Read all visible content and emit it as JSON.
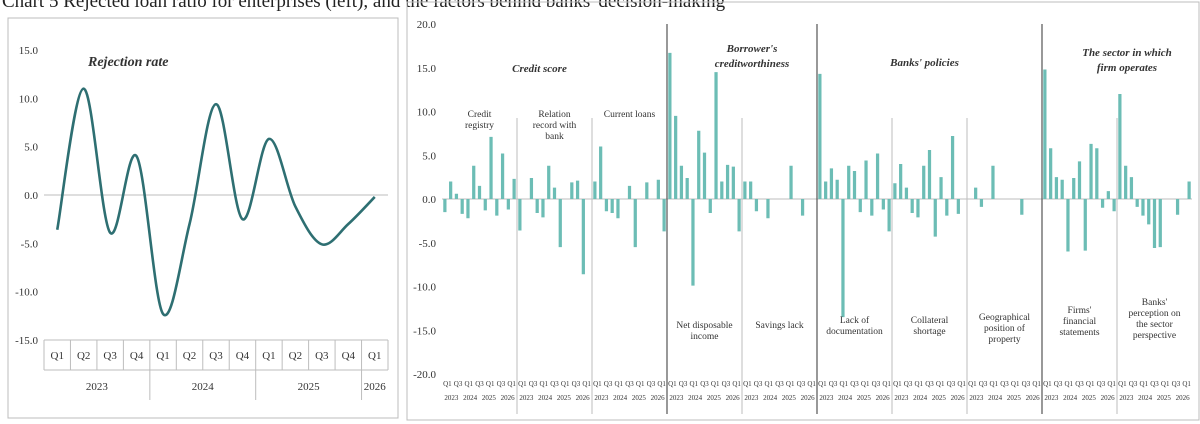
{
  "figure_title": "Chart 5 Rejected loan ratio for enterprises (left), and the factors behind banks' decision-making",
  "colors": {
    "line": "#2e6f72",
    "bar": "#6cbdb5",
    "grid": "#bdbdbd"
  },
  "chart_data": [
    {
      "type": "line",
      "title": "Rejection rate",
      "x": [
        "Q1",
        "Q2",
        "Q3",
        "Q4",
        "Q1",
        "Q2",
        "Q3",
        "Q4",
        "Q1",
        "Q2",
        "Q3",
        "Q4",
        "Q1"
      ],
      "year_groups": [
        {
          "year": "2023",
          "span": 4
        },
        {
          "year": "2024",
          "span": 4
        },
        {
          "year": "2025",
          "span": 4
        },
        {
          "year": "2026",
          "span": 1
        }
      ],
      "values": [
        -3.6,
        11.0,
        -3.9,
        4.0,
        -12.3,
        -3.0,
        9.4,
        -2.5,
        5.8,
        -1.2,
        -5.1,
        -3.0,
        -0.2
      ],
      "ylim": [
        -15,
        15
      ],
      "yticks": [
        "15.0",
        "10.0",
        "5.0",
        "0.0",
        "-5.0",
        "-10.0",
        "-15.0"
      ],
      "grid": false
    },
    {
      "type": "bar",
      "ylim": [
        -20,
        20
      ],
      "yticks": [
        "20.0",
        "15.0",
        "10.0",
        "5.0",
        "0.0",
        "-5.0",
        "-10.0",
        "-15.0",
        "-20.0"
      ],
      "x_labels": [
        "Q1",
        "Q3",
        "Q1",
        "Q3",
        "Q1",
        "Q3",
        "Q1"
      ],
      "year_labels": [
        "2023",
        "2024",
        "2025",
        "2026"
      ],
      "groups": [
        {
          "header": "Credit score",
          "subgroups": [
            {
              "name": "Credit registry",
              "values": [
                -1.5,
                2.0,
                0.6,
                -1.7,
                -2.2,
                3.8,
                1.5,
                -1.3,
                7.1,
                -1.9,
                5.2,
                -1.2,
                2.3
              ]
            },
            {
              "name": "Relation record with bank",
              "values": [
                -3.6,
                0.0,
                2.4,
                -1.6,
                -2.1,
                3.8,
                1.3,
                -5.5,
                0.0,
                1.9,
                2.1,
                -8.6,
                0.0
              ]
            },
            {
              "name": "Current loans",
              "values": [
                2.0,
                6.0,
                -1.4,
                -1.6,
                -2.2,
                0.0,
                1.5,
                -5.5,
                0.0,
                1.9,
                0.0,
                2.2,
                -3.7
              ]
            }
          ]
        },
        {
          "header": "Borrower's creditworthiness",
          "subgroups": [
            {
              "name": "Net disposable income",
              "values": [
                16.7,
                9.5,
                3.8,
                2.4,
                -9.9,
                7.8,
                5.3,
                -1.6,
                14.5,
                2.0,
                3.9,
                3.7,
                -3.7
              ]
            },
            {
              "name": "Savings lack",
              "values": [
                2.0,
                2.0,
                -1.4,
                0.0,
                -2.2,
                0.0,
                0.0,
                0.0,
                3.8,
                0.0,
                -1.9,
                0.0,
                0.0
              ]
            }
          ]
        },
        {
          "header": "Banks' policies",
          "subgroups": [
            {
              "name": "Lack of documentation",
              "values": [
                14.3,
                2.0,
                3.5,
                2.2,
                -13.5,
                3.8,
                3.2,
                -1.5,
                4.4,
                -1.9,
                5.2,
                -1.2,
                -3.7
              ]
            },
            {
              "name": "Collateral shortage",
              "values": [
                1.8,
                4.0,
                1.3,
                -1.6,
                -2.1,
                3.8,
                5.6,
                -4.3,
                2.5,
                -1.9,
                7.2,
                -1.7,
                0.0
              ]
            },
            {
              "name": "Geographical position of property",
              "values": [
                0.0,
                1.3,
                -0.9,
                0.0,
                3.8,
                0.0,
                0.0,
                0.0,
                0.0,
                -1.8,
                0.0,
                0.0,
                0.0
              ]
            }
          ]
        },
        {
          "header": "The sector in which firm operates",
          "subgroups": [
            {
              "name": "Firms' financial statements",
              "values": [
                14.8,
                5.8,
                2.5,
                2.2,
                -6.0,
                2.4,
                4.3,
                -5.9,
                6.3,
                5.8,
                -1.0,
                0.9,
                -1.4
              ]
            },
            {
              "name": "Banks' perception on the sector perspective",
              "values": [
                12.0,
                3.8,
                2.5,
                -0.9,
                -1.9,
                -2.9,
                -5.6,
                -5.5,
                0.0,
                0.0,
                -1.8,
                0.0,
                2.0
              ]
            }
          ]
        }
      ],
      "grid": false
    }
  ]
}
